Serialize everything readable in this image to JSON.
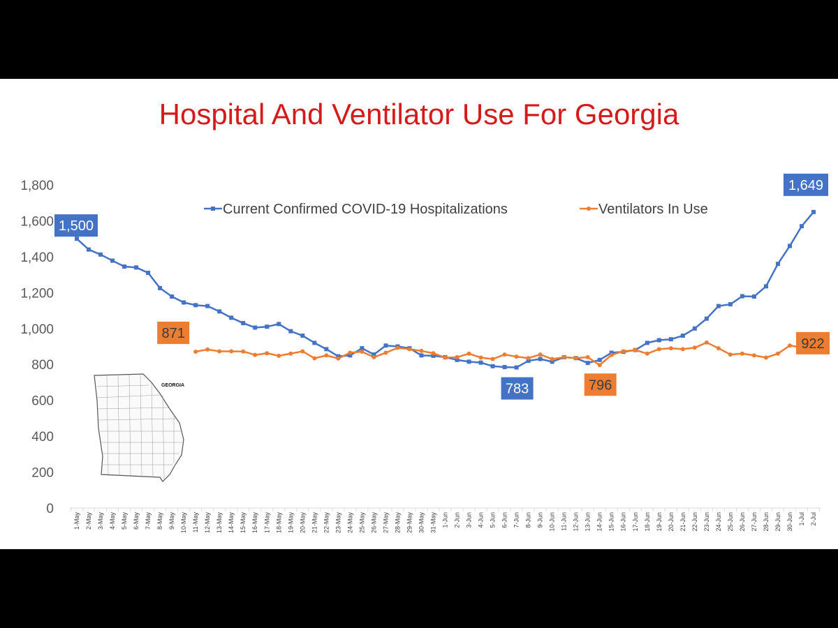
{
  "chart_data": {
    "type": "line",
    "title": "Hospital And Ventilator Use For Georgia",
    "xlabel": "",
    "ylabel": "",
    "ylim": [
      0,
      1800
    ],
    "yticks": [
      0,
      200,
      400,
      600,
      800,
      1000,
      1200,
      1400,
      1600,
      1800
    ],
    "ytick_labels": [
      "0",
      "200",
      "400",
      "600",
      "800",
      "1,000",
      "1,200",
      "1,400",
      "1,600",
      "1,800"
    ],
    "grid": false,
    "legend_position": "top",
    "categories": [
      "1-May",
      "2-May",
      "3-May",
      "4-May",
      "5-May",
      "6-May",
      "7-May",
      "8-May",
      "9-May",
      "10-May",
      "11-May",
      "12-May",
      "13-May",
      "14-May",
      "15-May",
      "16-May",
      "17-May",
      "18-May",
      "19-May",
      "20-May",
      "21-May",
      "22-May",
      "23-May",
      "24-May",
      "25-May",
      "26-May",
      "27-May",
      "28-May",
      "29-May",
      "30-May",
      "31-May",
      "1-Jun",
      "2-Jun",
      "3-Jun",
      "4-Jun",
      "5-Jun",
      "6-Jun",
      "7-Jun",
      "8-Jun",
      "9-Jun",
      "10-Jun",
      "11-Jun",
      "12-Jun",
      "13-Jun",
      "14-Jun",
      "15-Jun",
      "16-Jun",
      "17-Jun",
      "18-Jun",
      "19-Jun",
      "20-Jun",
      "21-Jun",
      "22-Jun",
      "23-Jun",
      "24-Jun",
      "25-Jun",
      "26-Jun",
      "27-Jun",
      "28-Jun",
      "29-Jun",
      "30-Jun",
      "1-Jul",
      "2-Jul"
    ],
    "series": [
      {
        "name": "Current Confirmed COVID-19 Hospitalizations",
        "color": "#4472c4",
        "marker": "square",
        "values": [
          1500,
          1440,
          1412,
          1378,
          1345,
          1340,
          1310,
          1225,
          1178,
          1145,
          1130,
          1125,
          1095,
          1060,
          1030,
          1005,
          1010,
          1025,
          985,
          960,
          920,
          885,
          845,
          850,
          890,
          855,
          905,
          900,
          890,
          850,
          848,
          840,
          825,
          815,
          810,
          790,
          785,
          783,
          820,
          830,
          815,
          840,
          835,
          808,
          825,
          865,
          870,
          880,
          920,
          935,
          940,
          960,
          1000,
          1055,
          1125,
          1135,
          1180,
          1178,
          1235,
          1360,
          1460,
          1570,
          1649
        ]
      },
      {
        "name": "Ventilators In Use",
        "color": "#ed7d31",
        "marker": "circle",
        "values": [
          null,
          null,
          null,
          null,
          null,
          null,
          null,
          null,
          null,
          null,
          871,
          883,
          873,
          873,
          872,
          853,
          862,
          848,
          860,
          873,
          834,
          850,
          833,
          865,
          871,
          840,
          865,
          892,
          885,
          875,
          862,
          838,
          840,
          860,
          838,
          830,
          855,
          843,
          835,
          855,
          830,
          840,
          835,
          840,
          796,
          853,
          873,
          880,
          860,
          885,
          890,
          885,
          893,
          922,
          890,
          855,
          860,
          850,
          838,
          860,
          905,
          895,
          922
        ]
      }
    ],
    "callouts": [
      {
        "series": 0,
        "label": "1,500",
        "color": "#4472c4",
        "index": 0
      },
      {
        "series": 0,
        "label": "783",
        "color": "#4472c4",
        "index": 37
      },
      {
        "series": 0,
        "label": "1,649",
        "color": "#4472c4",
        "index": 62
      },
      {
        "series": 1,
        "label": "871",
        "color": "#ed7d31",
        "index": 10
      },
      {
        "series": 1,
        "label": "796",
        "color": "#ed7d31",
        "index": 44
      },
      {
        "series": 1,
        "label": "922",
        "color": "#ed7d31",
        "index": 62
      }
    ]
  },
  "map": {
    "label": "GEORGIA"
  }
}
